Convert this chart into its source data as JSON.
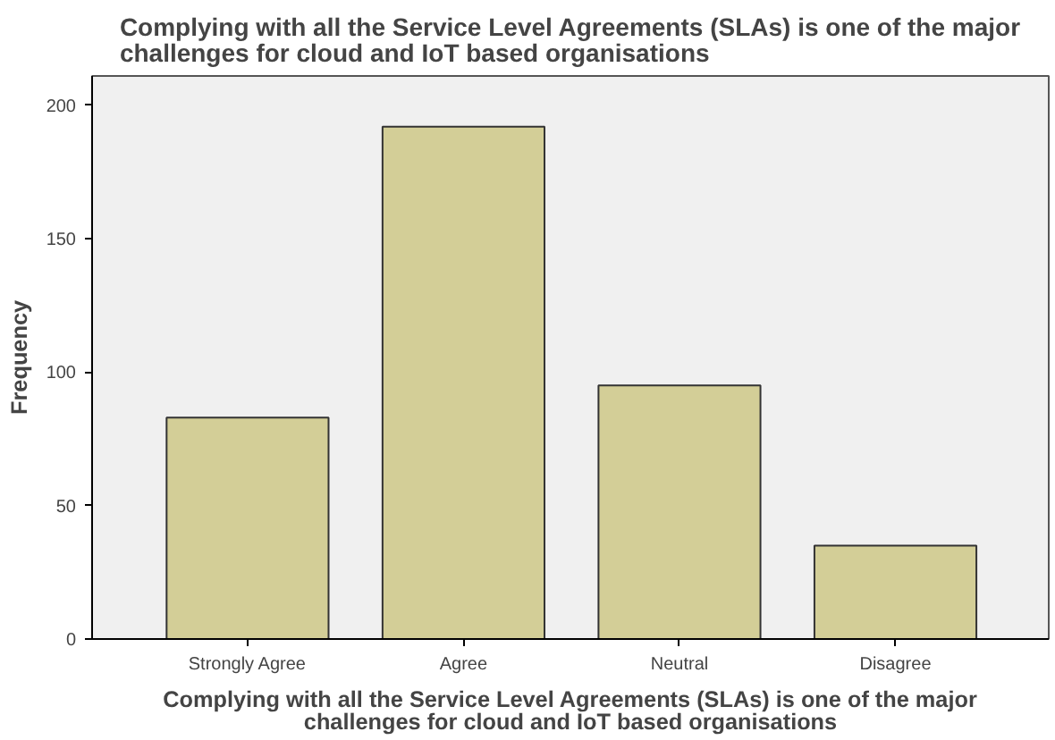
{
  "chart_data": {
    "type": "bar",
    "title": "Complying with all the Service Level Agreements (SLAs) is one of the major\nchallenges for cloud and IoT based organisations",
    "xlabel": "Complying with all the Service Level Agreements (SLAs) is one of the major\nchallenges for cloud and IoT based organisations",
    "ylabel": "Frequency",
    "categories": [
      "Strongly Agree",
      "Agree",
      "Neutral",
      "Disagree"
    ],
    "values": [
      83,
      192,
      95,
      35
    ],
    "color": "#d3ce97",
    "ylim": [
      0,
      211
    ],
    "yticks": [
      0,
      50,
      100,
      150,
      200
    ],
    "grid": false
  }
}
